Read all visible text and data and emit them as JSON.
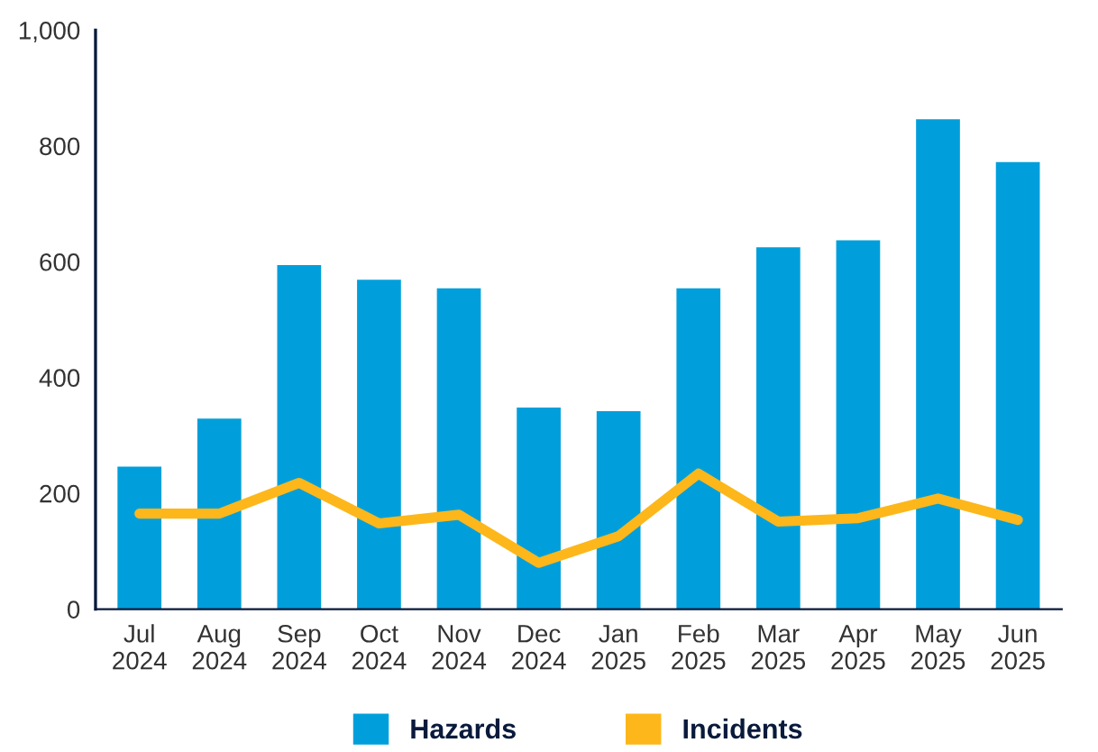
{
  "chart_data": {
    "type": "bar",
    "categories": [
      "Jul\n2024",
      "Aug\n2024",
      "Sep\n2024",
      "Oct\n2024",
      "Nov\n2024",
      "Dec\n2024",
      "Jan\n2025",
      "Feb\n2025",
      "Mar\n2025",
      "Apr\n2025",
      "May\n2025",
      "Jun\n2025"
    ],
    "series": [
      {
        "name": "Hazards",
        "color": "#009fdb",
        "values": [
          246,
          329,
          594,
          569,
          554,
          348,
          342,
          554,
          625,
          637,
          846,
          772
        ]
      },
      {
        "name": "Incidents",
        "type": "line",
        "color": "#fdb71a",
        "values": [
          165,
          165,
          218,
          148,
          163,
          80,
          126,
          234,
          151,
          157,
          191,
          154
        ]
      }
    ],
    "ylim": [
      0,
      1000
    ],
    "yticks": [
      0,
      200,
      400,
      600,
      800,
      {
        "value": 1000,
        "label": "1,000"
      }
    ],
    "grid": false,
    "legend": "bottom",
    "marker": "none",
    "line_style": "solid"
  }
}
